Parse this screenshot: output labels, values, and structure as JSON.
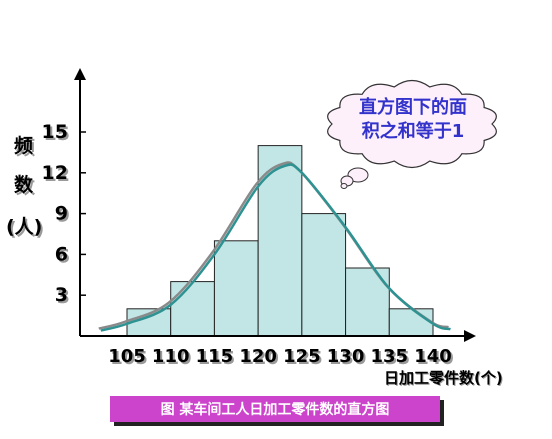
{
  "chart_data": {
    "type": "bar",
    "categories": [
      "105-110",
      "110-115",
      "115-120",
      "120-125",
      "125-130",
      "130-135",
      "135-140"
    ],
    "bin_edges": [
      105,
      110,
      115,
      120,
      125,
      130,
      135,
      140
    ],
    "values": [
      2,
      4,
      7,
      14,
      9,
      5,
      2
    ],
    "ylim": [
      0,
      18
    ],
    "xlim": [
      102,
      142
    ],
    "yticks": [
      3,
      6,
      9,
      12,
      15
    ],
    "xticks": [
      105,
      110,
      115,
      120,
      125,
      130,
      135,
      140
    ],
    "ylabel_lines": [
      "频",
      "数",
      "(人)"
    ],
    "xlabel": "日加工零件数(个)",
    "callout_lines": [
      "直方图下的面",
      "积之和等于1"
    ],
    "caption": "图 某车间工人日加工零件数的直方图",
    "curve": {
      "x": [
        102,
        105,
        110,
        115,
        120,
        123,
        125,
        130,
        135,
        140,
        142
      ],
      "y": [
        0.4,
        0.9,
        2.3,
        6.0,
        11.0,
        12.5,
        12.0,
        8.0,
        3.5,
        0.9,
        0.5
      ]
    },
    "colors": {
      "bar_fill": "#c2e5e5",
      "bar_stroke": "#222222",
      "curve": "#2e9292",
      "callout_text": "#3333cc",
      "cloud_fill": "#fdf0fb",
      "cloud_stroke": "#333333",
      "caption_bg": "#cc44cc",
      "caption_text": "#ffffff"
    }
  }
}
